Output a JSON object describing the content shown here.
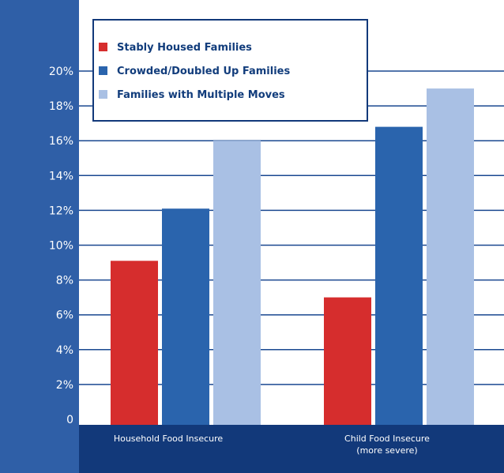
{
  "colors": {
    "axis_panel": "#2f5fa7",
    "plot_bg": "#ffffff",
    "category_band": "#12397a",
    "gridline": "#1a4890",
    "legend_border": "#12397a"
  },
  "chart_data": {
    "type": "bar",
    "title": "",
    "xlabel": "",
    "ylabel": "",
    "categories": [
      [
        "Household Food Insecure"
      ],
      [
        "Child Food Insecure",
        "(more severe)"
      ]
    ],
    "ylim": [
      0,
      22
    ],
    "yticks": [
      0,
      2,
      4,
      6,
      8,
      10,
      12,
      14,
      16,
      18,
      20
    ],
    "ytick_labels": [
      "0",
      "2%",
      "4%",
      "6%",
      "8%",
      "10%",
      "12%",
      "14%",
      "16%",
      "18%",
      "20%"
    ],
    "grid": true,
    "legend_position": "top-left",
    "series": [
      {
        "name": "Stably Housed Families",
        "color": "#d62d2d",
        "values": [
          9.1,
          7.0
        ]
      },
      {
        "name": "Crowded/Doubled Up Families",
        "color": "#2a64ad",
        "values": [
          12.1,
          16.8
        ]
      },
      {
        "name": "Families with Multiple Moves",
        "color": "#a9c0e4",
        "values": [
          16.0,
          19.0
        ]
      }
    ]
  }
}
